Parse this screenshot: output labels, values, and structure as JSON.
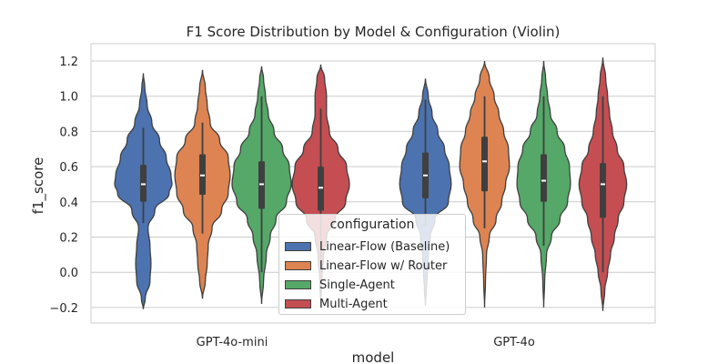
{
  "chart_data": {
    "type": "violin",
    "title": "F1 Score Distribution by Model & Configuration (Violin)",
    "xlabel": "model",
    "ylabel": "f1_score",
    "ylim": [
      -0.3,
      1.3
    ],
    "yticks": [
      -0.2,
      0.0,
      0.2,
      0.4,
      0.6,
      0.8,
      1.0,
      1.2
    ],
    "ytick_labels": [
      "−0.2",
      "0.0",
      "0.2",
      "0.4",
      "0.6",
      "0.8",
      "1.0",
      "1.2"
    ],
    "categories": [
      "GPT-4o-mini",
      "GPT-4o"
    ],
    "grid": "horizontal",
    "legend": {
      "title": "configuration",
      "placement": "center-bottom",
      "entries": [
        "Linear-Flow (Baseline)",
        "Linear-Flow w/ Router",
        "Single-Agent",
        "Multi-Agent"
      ]
    },
    "series": [
      {
        "name": "Linear-Flow (Baseline)",
        "color": "#4c72b0",
        "violins": [
          {
            "min": -0.21,
            "max": 1.13,
            "q1": 0.4,
            "median": 0.5,
            "q3": 0.61,
            "whisker_low": 0.28,
            "whisker_high": 0.82,
            "profile": [
              [
                -0.21,
                0
              ],
              [
                -0.15,
                0.02
              ],
              [
                -0.05,
                0.07
              ],
              [
                0.05,
                0.08
              ],
              [
                0.15,
                0.07
              ],
              [
                0.25,
                0.05
              ],
              [
                0.35,
                0.12
              ],
              [
                0.45,
                0.27
              ],
              [
                0.5,
                0.3
              ],
              [
                0.55,
                0.29
              ],
              [
                0.65,
                0.24
              ],
              [
                0.75,
                0.17
              ],
              [
                0.85,
                0.09
              ],
              [
                0.95,
                0.04
              ],
              [
                1.05,
                0.015
              ],
              [
                1.13,
                0
              ]
            ]
          },
          {
            "min": -0.19,
            "max": 1.1,
            "q1": 0.42,
            "median": 0.55,
            "q3": 0.68,
            "whisker_low": 0.26,
            "whisker_high": 0.98,
            "profile": [
              [
                -0.19,
                0
              ],
              [
                -0.1,
                0.01
              ],
              [
                0.0,
                0.02
              ],
              [
                0.1,
                0.03
              ],
              [
                0.2,
                0.05
              ],
              [
                0.3,
                0.1
              ],
              [
                0.4,
                0.24
              ],
              [
                0.5,
                0.27
              ],
              [
                0.6,
                0.25
              ],
              [
                0.7,
                0.2
              ],
              [
                0.8,
                0.13
              ],
              [
                0.9,
                0.07
              ],
              [
                1.0,
                0.03
              ],
              [
                1.1,
                0
              ]
            ]
          }
        ]
      },
      {
        "name": "Linear-Flow w/ Router",
        "color": "#dd8452",
        "violins": [
          {
            "min": -0.15,
            "max": 1.15,
            "q1": 0.44,
            "median": 0.55,
            "q3": 0.67,
            "whisker_low": 0.22,
            "whisker_high": 0.85,
            "profile": [
              [
                -0.15,
                0
              ],
              [
                -0.05,
                0.03
              ],
              [
                0.05,
                0.05
              ],
              [
                0.15,
                0.06
              ],
              [
                0.25,
                0.1
              ],
              [
                0.35,
                0.2
              ],
              [
                0.45,
                0.27
              ],
              [
                0.55,
                0.29
              ],
              [
                0.65,
                0.27
              ],
              [
                0.75,
                0.18
              ],
              [
                0.85,
                0.08
              ],
              [
                0.95,
                0.05
              ],
              [
                1.05,
                0.03
              ],
              [
                1.15,
                0
              ]
            ]
          },
          {
            "min": -0.2,
            "max": 1.2,
            "q1": 0.46,
            "median": 0.63,
            "q3": 0.77,
            "whisker_low": 0.25,
            "whisker_high": 1.0,
            "profile": [
              [
                -0.2,
                0
              ],
              [
                -0.05,
                0.01
              ],
              [
                0.1,
                0.02
              ],
              [
                0.2,
                0.05
              ],
              [
                0.3,
                0.12
              ],
              [
                0.4,
                0.18
              ],
              [
                0.5,
                0.22
              ],
              [
                0.6,
                0.26
              ],
              [
                0.7,
                0.25
              ],
              [
                0.8,
                0.2
              ],
              [
                0.9,
                0.15
              ],
              [
                1.0,
                0.1
              ],
              [
                1.1,
                0.05
              ],
              [
                1.2,
                0
              ]
            ]
          }
        ]
      },
      {
        "name": "Single-Agent",
        "color": "#55a868",
        "violins": [
          {
            "min": -0.18,
            "max": 1.17,
            "q1": 0.36,
            "median": 0.5,
            "q3": 0.63,
            "whisker_low": 0.0,
            "whisker_high": 1.0,
            "profile": [
              [
                -0.18,
                0
              ],
              [
                -0.05,
                0.02
              ],
              [
                0.1,
                0.05
              ],
              [
                0.2,
                0.09
              ],
              [
                0.3,
                0.15
              ],
              [
                0.4,
                0.26
              ],
              [
                0.5,
                0.31
              ],
              [
                0.6,
                0.29
              ],
              [
                0.7,
                0.22
              ],
              [
                0.8,
                0.13
              ],
              [
                0.9,
                0.07
              ],
              [
                1.0,
                0.04
              ],
              [
                1.1,
                0.02
              ],
              [
                1.17,
                0
              ]
            ]
          },
          {
            "min": -0.2,
            "max": 1.2,
            "q1": 0.4,
            "median": 0.52,
            "q3": 0.67,
            "whisker_low": 0.15,
            "whisker_high": 1.0,
            "profile": [
              [
                -0.2,
                0
              ],
              [
                -0.05,
                0.01
              ],
              [
                0.1,
                0.03
              ],
              [
                0.2,
                0.08
              ],
              [
                0.3,
                0.17
              ],
              [
                0.4,
                0.25
              ],
              [
                0.5,
                0.28
              ],
              [
                0.6,
                0.27
              ],
              [
                0.7,
                0.22
              ],
              [
                0.8,
                0.14
              ],
              [
                0.9,
                0.07
              ],
              [
                1.0,
                0.04
              ],
              [
                1.1,
                0.02
              ],
              [
                1.2,
                0
              ]
            ]
          }
        ]
      },
      {
        "name": "Multi-Agent",
        "color": "#c44e52",
        "violins": [
          {
            "min": -0.2,
            "max": 1.18,
            "q1": 0.35,
            "median": 0.48,
            "q3": 0.6,
            "whisker_low": 0.0,
            "whisker_high": 0.93,
            "profile": [
              [
                -0.2,
                0
              ],
              [
                -0.05,
                0.01
              ],
              [
                0.1,
                0.03
              ],
              [
                0.2,
                0.06
              ],
              [
                0.3,
                0.15
              ],
              [
                0.4,
                0.26
              ],
              [
                0.5,
                0.3
              ],
              [
                0.6,
                0.27
              ],
              [
                0.7,
                0.18
              ],
              [
                0.8,
                0.09
              ],
              [
                0.9,
                0.06
              ],
              [
                1.0,
                0.06
              ],
              [
                1.1,
                0.04
              ],
              [
                1.18,
                0
              ]
            ]
          },
          {
            "min": -0.22,
            "max": 1.22,
            "q1": 0.31,
            "median": 0.5,
            "q3": 0.62,
            "whisker_low": 0.0,
            "whisker_high": 1.0,
            "profile": [
              [
                -0.22,
                0
              ],
              [
                -0.1,
                0.02
              ],
              [
                0.0,
                0.05
              ],
              [
                0.1,
                0.08
              ],
              [
                0.2,
                0.12
              ],
              [
                0.3,
                0.16
              ],
              [
                0.4,
                0.22
              ],
              [
                0.5,
                0.25
              ],
              [
                0.6,
                0.22
              ],
              [
                0.7,
                0.15
              ],
              [
                0.8,
                0.1
              ],
              [
                0.9,
                0.07
              ],
              [
                1.0,
                0.05
              ],
              [
                1.1,
                0.03
              ],
              [
                1.22,
                0
              ]
            ]
          }
        ]
      }
    ]
  }
}
